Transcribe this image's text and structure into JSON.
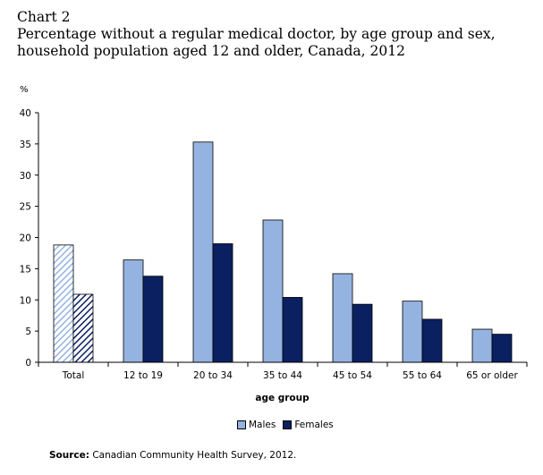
{
  "header": {
    "chart_number": "Chart 2",
    "title": "Percentage without a regular medical doctor, by age group and sex, household population aged 12 and older, Canada, 2012"
  },
  "source": {
    "label": "Source:",
    "text": " Canadian Community Health Survey, 2012."
  },
  "colors": {
    "males": "#95b3e0",
    "females": "#0a2060",
    "axis": "#000000"
  },
  "chart_data": {
    "type": "bar",
    "title": "Percentage without a regular medical doctor, by age group and sex, household population aged 12 and older, Canada, 2012",
    "xlabel": "age group",
    "ylabel": "%",
    "ylim": [
      0,
      40
    ],
    "yticks": [
      0,
      5,
      10,
      15,
      20,
      25,
      30,
      35,
      40
    ],
    "grid": false,
    "legend_position": "bottom",
    "categories": [
      "Total",
      "12 to 19",
      "20 to 34",
      "35 to 44",
      "45 to 54",
      "55 to 64",
      "65 or older"
    ],
    "hatched_categories": [
      "Total"
    ],
    "series": [
      {
        "name": "Males",
        "values": [
          18.8,
          16.4,
          35.3,
          22.8,
          14.2,
          9.8,
          5.3
        ]
      },
      {
        "name": "Females",
        "values": [
          10.9,
          13.8,
          19.0,
          10.4,
          9.3,
          6.9,
          4.5
        ]
      }
    ]
  }
}
